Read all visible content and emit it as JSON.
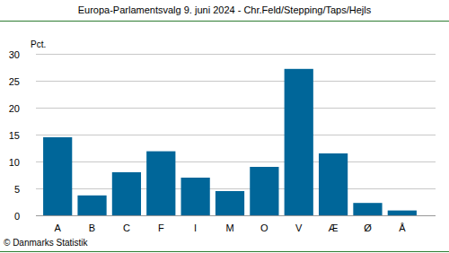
{
  "chart_data": {
    "type": "bar",
    "title": "Europa-Parlamentsvalg 9. juni 2024 - Chr.Feld/Stepping/Taps/Hejls",
    "y_label": "Pct.",
    "source": "© Danmarks Statistik",
    "categories": [
      "A",
      "B",
      "C",
      "F",
      "I",
      "M",
      "O",
      "V",
      "Æ",
      "Ø",
      "Å"
    ],
    "values": [
      14.5,
      3.7,
      8.0,
      11.9,
      7.0,
      4.5,
      9.0,
      27.2,
      11.5,
      2.3,
      0.9
    ],
    "color": "#006699",
    "ylim": [
      0,
      30
    ],
    "yticks": [
      0,
      5,
      10,
      15,
      20,
      25,
      30
    ],
    "grid": true
  }
}
